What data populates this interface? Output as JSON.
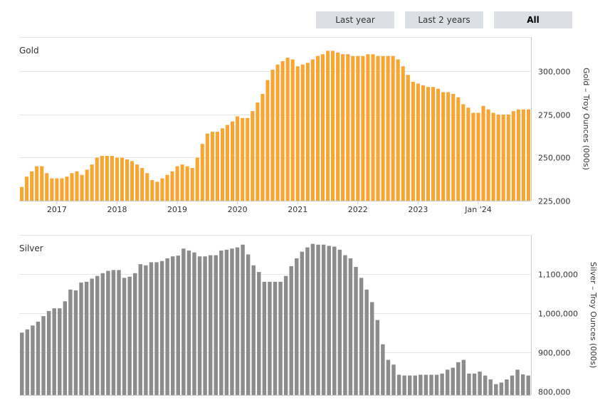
{
  "range_selector": {
    "buttons": [
      {
        "label": "Last year",
        "active": false
      },
      {
        "label": "Last 2 years",
        "active": false
      },
      {
        "label": "All",
        "active": true
      }
    ]
  },
  "colors": {
    "gold": "#f9a532",
    "silver": "#8c8c8c",
    "grid": "#e6e6e6",
    "axis": "#cccccc"
  },
  "chart_data": [
    {
      "type": "bar",
      "title": "Gold",
      "ylabel": "Gold – Troy Ounces (000s)",
      "ylim": [
        225000,
        320000
      ],
      "yticks": [
        225000,
        250000,
        275000,
        300000
      ],
      "ytick_labels": [
        "225,000",
        "250,000",
        "275,000",
        "300,000"
      ],
      "xticks": [
        {
          "label": "2017",
          "index": 7
        },
        {
          "label": "2018",
          "index": 19
        },
        {
          "label": "2019",
          "index": 31
        },
        {
          "label": "2020",
          "index": 43
        },
        {
          "label": "2021",
          "index": 55
        },
        {
          "label": "2022",
          "index": 67
        },
        {
          "label": "2023",
          "index": 79
        },
        {
          "label": "Jan '24",
          "index": 91
        }
      ],
      "grid": true,
      "legend": "none",
      "series": [
        {
          "values": [
            233000,
            239000,
            242000,
            245000,
            245000,
            241000,
            238000,
            238000,
            238000,
            239000,
            241000,
            242000,
            240000,
            243000,
            246000,
            250000,
            251000,
            251000,
            251000,
            250000,
            250000,
            249000,
            248000,
            246000,
            244000,
            241000,
            237000,
            236000,
            238000,
            240000,
            242000,
            245000,
            246000,
            245000,
            244000,
            250000,
            258000,
            264000,
            265000,
            265000,
            267000,
            269000,
            271000,
            274000,
            273000,
            273000,
            277000,
            282000,
            287000,
            295000,
            301000,
            304000,
            306000,
            308000,
            307000,
            303000,
            304000,
            305000,
            307000,
            309000,
            310000,
            312000,
            312000,
            311000,
            310000,
            310000,
            309000,
            309000,
            309000,
            310000,
            310000,
            309000,
            309000,
            309000,
            309000,
            307000,
            303000,
            298000,
            294000,
            293000,
            292000,
            291000,
            291000,
            290000,
            288000,
            288000,
            287000,
            285000,
            281000,
            279000,
            276000,
            276000,
            280000,
            278000,
            276000,
            275000,
            275000,
            275000,
            277000,
            278000,
            278000,
            278000
          ]
        }
      ]
    },
    {
      "type": "bar",
      "title": "Silver",
      "ylabel": "Silver – Troy Ounces (000s)",
      "ylim": [
        790000,
        1200000
      ],
      "yticks": [
        800000,
        900000,
        1000000,
        1100000
      ],
      "ytick_labels": [
        "800,000",
        "900,000",
        "1,000,000",
        "1,100,000"
      ],
      "grid": true,
      "legend": "none",
      "series": [
        {
          "values": [
            950000,
            958000,
            968000,
            978000,
            992000,
            1005000,
            1012000,
            1012000,
            1030000,
            1060000,
            1058000,
            1078000,
            1080000,
            1088000,
            1095000,
            1102000,
            1108000,
            1110000,
            1110000,
            1090000,
            1093000,
            1102000,
            1125000,
            1122000,
            1130000,
            1130000,
            1133000,
            1140000,
            1145000,
            1147000,
            1165000,
            1160000,
            1155000,
            1145000,
            1145000,
            1148000,
            1148000,
            1160000,
            1162000,
            1165000,
            1168000,
            1175000,
            1150000,
            1122000,
            1105000,
            1080000,
            1080000,
            1080000,
            1080000,
            1095000,
            1120000,
            1140000,
            1157000,
            1168000,
            1177000,
            1175000,
            1175000,
            1172000,
            1170000,
            1162000,
            1148000,
            1140000,
            1118000,
            1090000,
            1060000,
            1028000,
            982000,
            920000,
            880000,
            868000,
            842000,
            840000,
            840000,
            840000,
            842000,
            842000,
            842000,
            842000,
            845000,
            855000,
            860000,
            874000,
            880000,
            845000,
            845000,
            850000,
            840000,
            830000,
            818000,
            822000,
            830000,
            840000,
            855000,
            843000,
            840000
          ]
        }
      ]
    }
  ]
}
